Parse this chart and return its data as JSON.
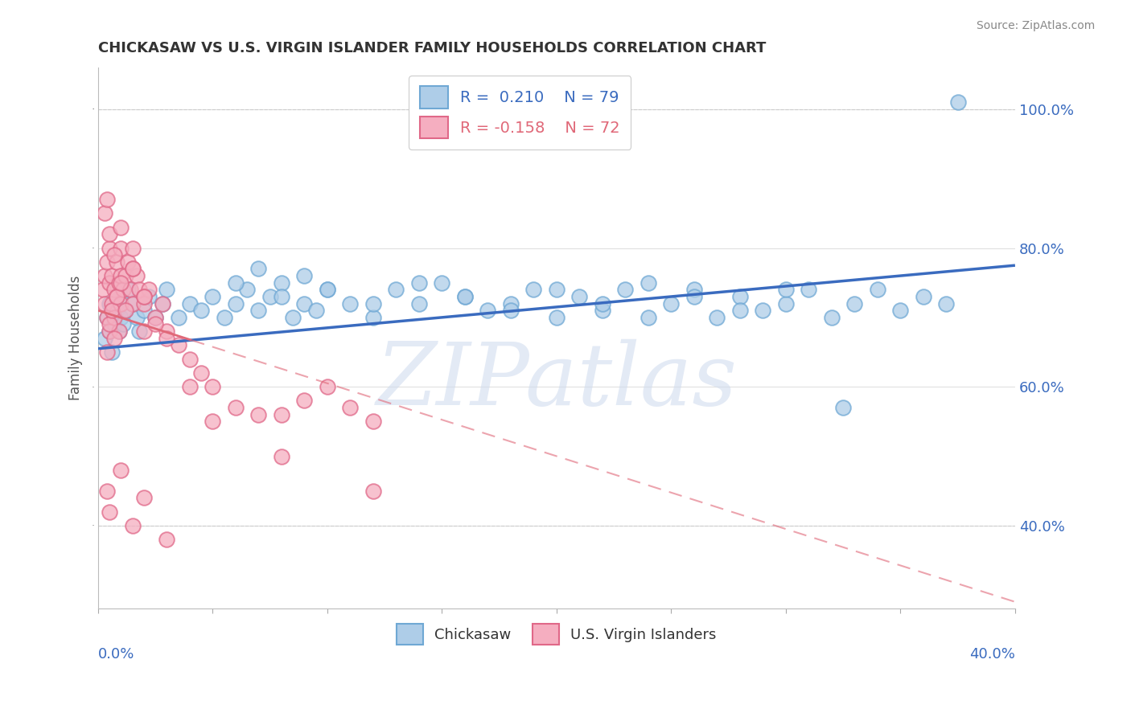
{
  "title": "CHICKASAW VS U.S. VIRGIN ISLANDER FAMILY HOUSEHOLDS CORRELATION CHART",
  "source_text": "Source: ZipAtlas.com",
  "ylabel": "Family Households",
  "xlim": [
    0.0,
    40.0
  ],
  "ylim": [
    28.0,
    106.0
  ],
  "yticks": [
    40.0,
    60.0,
    80.0,
    100.0
  ],
  "ytick_labels": [
    "40.0%",
    "60.0%",
    "80.0%",
    "100.0%"
  ],
  "chickasaw_color": "#aecde8",
  "chickasaw_edge": "#6fa8d4",
  "virgin_color": "#f5aec0",
  "virgin_edge": "#e06888",
  "blue_line_color": "#3a6bbf",
  "pink_line_color": "#e06878",
  "watermark": "ZIPatlas",
  "chickasaw_R": 0.21,
  "chickasaw_N": 79,
  "virgin_R": -0.158,
  "virgin_N": 72,
  "blue_line_y0": 65.5,
  "blue_line_y1": 77.5,
  "pink_line_y0": 71.0,
  "pink_line_y1": 29.0,
  "chickasaw_x": [
    0.3,
    0.4,
    0.5,
    0.5,
    0.6,
    0.7,
    0.8,
    0.9,
    1.0,
    1.0,
    1.1,
    1.2,
    1.3,
    1.5,
    1.7,
    1.8,
    2.0,
    2.2,
    2.5,
    2.8,
    3.0,
    3.5,
    4.0,
    4.5,
    5.0,
    5.5,
    6.0,
    6.5,
    7.0,
    7.5,
    8.0,
    8.5,
    9.0,
    9.5,
    10.0,
    11.0,
    12.0,
    13.0,
    14.0,
    15.0,
    16.0,
    17.0,
    18.0,
    19.0,
    20.0,
    21.0,
    22.0,
    23.0,
    24.0,
    25.0,
    26.0,
    27.0,
    28.0,
    29.0,
    30.0,
    31.0,
    32.0,
    33.0,
    34.0,
    35.0,
    36.0,
    37.0,
    37.5,
    6.0,
    7.0,
    8.0,
    9.0,
    10.0,
    12.0,
    14.0,
    16.0,
    18.0,
    20.0,
    22.0,
    24.0,
    26.0,
    28.0,
    30.0,
    32.5
  ],
  "chickasaw_y": [
    67,
    70,
    68,
    72,
    65,
    69,
    71,
    68,
    70,
    73,
    69,
    71,
    74,
    72,
    70,
    68,
    71,
    73,
    70,
    72,
    74,
    70,
    72,
    71,
    73,
    70,
    72,
    74,
    71,
    73,
    75,
    70,
    72,
    71,
    74,
    72,
    70,
    74,
    72,
    75,
    73,
    71,
    72,
    74,
    70,
    73,
    71,
    74,
    70,
    72,
    74,
    70,
    73,
    71,
    72,
    74,
    70,
    72,
    74,
    71,
    73,
    72,
    101,
    75,
    77,
    73,
    76,
    74,
    72,
    75,
    73,
    71,
    74,
    72,
    75,
    73,
    71,
    74,
    57
  ],
  "virgin_x": [
    0.2,
    0.3,
    0.3,
    0.4,
    0.4,
    0.5,
    0.5,
    0.5,
    0.6,
    0.6,
    0.7,
    0.7,
    0.8,
    0.8,
    0.9,
    0.9,
    1.0,
    1.0,
    1.0,
    1.1,
    1.2,
    1.3,
    1.4,
    1.5,
    1.5,
    1.7,
    1.8,
    2.0,
    2.0,
    2.2,
    2.5,
    2.8,
    3.0,
    3.5,
    4.0,
    4.5,
    5.0,
    6.0,
    7.0,
    8.0,
    9.0,
    10.0,
    11.0,
    12.0,
    0.4,
    0.5,
    0.6,
    0.7,
    0.8,
    1.0,
    1.2,
    1.5,
    2.0,
    2.5,
    3.0,
    0.3,
    0.4,
    0.5,
    0.7,
    1.0,
    1.5,
    2.0,
    0.4,
    0.5,
    1.0,
    1.5,
    2.0,
    3.0,
    4.0,
    5.0,
    8.0,
    12.0
  ],
  "virgin_y": [
    74,
    76,
    72,
    78,
    70,
    80,
    75,
    68,
    76,
    72,
    74,
    70,
    78,
    73,
    75,
    68,
    80,
    76,
    72,
    74,
    76,
    78,
    74,
    80,
    72,
    76,
    74,
    72,
    68,
    74,
    70,
    72,
    68,
    66,
    64,
    62,
    60,
    57,
    56,
    56,
    58,
    60,
    57,
    55,
    65,
    69,
    71,
    67,
    73,
    75,
    71,
    77,
    73,
    69,
    67,
    85,
    87,
    82,
    79,
    83,
    77,
    73,
    45,
    42,
    48,
    40,
    44,
    38,
    60,
    55,
    50,
    45
  ]
}
